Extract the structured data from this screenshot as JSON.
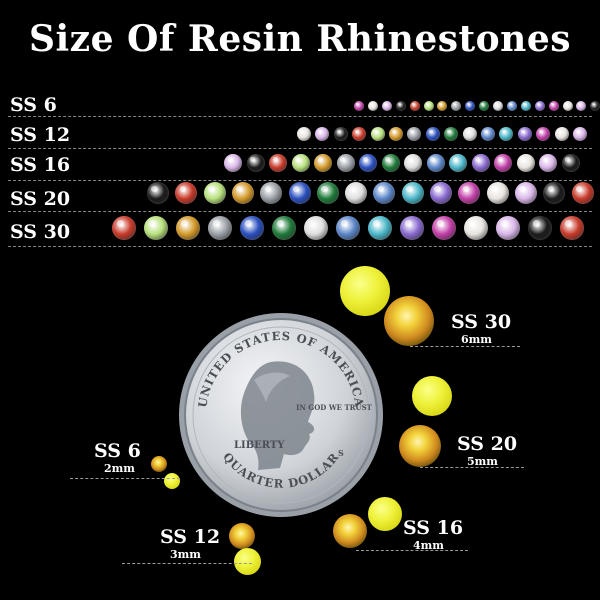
{
  "title": "Size Of Resin Rhinestones",
  "rows": [
    {
      "label": "SS 6"
    },
    {
      "label": "SS 12"
    },
    {
      "label": "SS 16"
    },
    {
      "label": "SS 20"
    },
    {
      "label": "SS 30"
    }
  ],
  "stone_colors": [
    "#c23fa8",
    "#e8e4e0",
    "#d9b5e8",
    "#1b1b1b",
    "#c83a2a",
    "#b7e07c",
    "#d49a2a",
    "#9aa0a6",
    "#2a4fbf",
    "#1f7a3a",
    "#dedede",
    "#5c86c9",
    "#4bb7c9",
    "#8a6ad0"
  ],
  "sizes": [
    {
      "name": "SS 30",
      "mm": "6mm"
    },
    {
      "name": "SS 20",
      "mm": "5mm"
    },
    {
      "name": "SS 16",
      "mm": "4mm"
    },
    {
      "name": "SS 6",
      "mm": "2mm"
    },
    {
      "name": "SS 12",
      "mm": "3mm"
    }
  ],
  "coin": {
    "top_text": "UNITED STATES OF AMERICA",
    "motto": "IN GOD WE TRUST",
    "liberty": "LIBERTY",
    "mint": "S",
    "bottom_text": "QUARTER DOLLAR"
  },
  "colors": {
    "background": "#000000",
    "text": "#ffffff",
    "stone_yellow": "#eef23a",
    "coin_silver": "#cfd3d8"
  }
}
